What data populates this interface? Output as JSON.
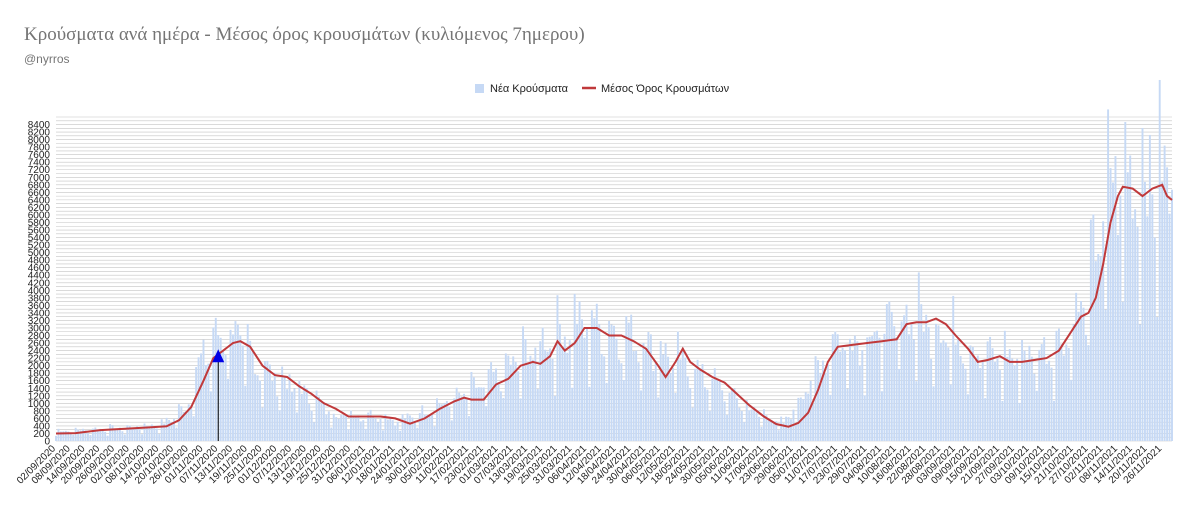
{
  "header": {
    "title": "Κρούσματα ανά ημέρα - Μέσος όρος κρουσμάτων (κυλιόμενος 7ημερου)",
    "subtitle": "@nyrros"
  },
  "chart_data": {
    "type": "bar",
    "title": "Κρούσματα ανά ημέρα - Μέσος όρος κρουσμάτων (κυλιόμενος 7ημερου)",
    "xlabel": "",
    "ylabel": "",
    "ylim": [
      0,
      8600
    ],
    "yticks": [
      0,
      200,
      400,
      600,
      800,
      1000,
      1200,
      1400,
      1600,
      1800,
      2000,
      2200,
      2400,
      2600,
      2800,
      3000,
      3200,
      3400,
      3600,
      3800,
      4000,
      4200,
      4400,
      4600,
      4800,
      5000,
      5200,
      5400,
      5600,
      5800,
      6000,
      6200,
      6400,
      6600,
      6800,
      7000,
      7200,
      7400,
      7600,
      7800,
      8000,
      8200,
      8400
    ],
    "x_start": "02/09/2020",
    "x_end": "30/11/2021",
    "xticks": [
      "02/09/2020",
      "08/09/2020",
      "14/09/2020",
      "20/09/2020",
      "26/09/2020",
      "02/10/2020",
      "08/10/2020",
      "14/10/2020",
      "20/10/2020",
      "26/10/2020",
      "01/11/2020",
      "07/11/2020",
      "13/11/2020",
      "19/11/2020",
      "25/11/2020",
      "01/12/2020",
      "07/12/2020",
      "13/12/2020",
      "19/12/2020",
      "25/12/2020",
      "31/12/2020",
      "06/01/2021",
      "12/01/2021",
      "18/01/2021",
      "24/01/2021",
      "30/01/2021",
      "05/02/2021",
      "11/02/2021",
      "17/02/2021",
      "23/02/2021",
      "01/03/2021",
      "07/03/2021",
      "13/03/2021",
      "19/03/2021",
      "25/03/2021",
      "31/03/2021",
      "06/04/2021",
      "12/04/2021",
      "18/04/2021",
      "24/04/2021",
      "30/04/2021",
      "06/05/2021",
      "12/05/2021",
      "18/05/2021",
      "24/05/2021",
      "30/05/2021",
      "05/06/2021",
      "11/06/2021",
      "17/06/2021",
      "23/06/2021",
      "29/06/2021",
      "05/07/2021",
      "11/07/2021",
      "17/07/2021",
      "23/07/2021",
      "29/07/2021",
      "04/08/2021",
      "10/08/2021",
      "16/08/2021",
      "22/08/2021",
      "28/08/2021",
      "03/09/2021",
      "09/09/2021",
      "15/09/2021",
      "21/09/2021",
      "27/09/2021",
      "03/10/2021",
      "09/10/2021",
      "15/10/2021",
      "21/10/2021",
      "27/10/2021",
      "02/11/2021",
      "08/11/2021",
      "14/11/2021",
      "20/11/2021",
      "26/11/2021"
    ],
    "grid": true,
    "legend_position": "top-center",
    "series": [
      {
        "name": "Νέα Κρούσματα",
        "type": "bar",
        "color": "#c6d9f5",
        "description_points": [
          [
            "02/09/2020",
            250
          ],
          [
            "01/10/2020",
            330
          ],
          [
            "15/10/2020",
            400
          ],
          [
            "25/10/2020",
            850
          ],
          [
            "01/11/2020",
            2200
          ],
          [
            "10/11/2020",
            2800
          ],
          [
            "15/11/2020",
            2600
          ],
          [
            "25/11/2020",
            1800
          ],
          [
            "10/12/2020",
            1300
          ],
          [
            "25/12/2020",
            650
          ],
          [
            "10/01/2021",
            650
          ],
          [
            "20/01/2021",
            500
          ],
          [
            "05/02/2021",
            900
          ],
          [
            "15/02/2021",
            1150
          ],
          [
            "25/02/2021",
            1500
          ],
          [
            "10/03/2021",
            2100
          ],
          [
            "20/03/2021",
            2500
          ],
          [
            "05/04/2021",
            3000
          ],
          [
            "15/04/2021",
            2800
          ],
          [
            "25/04/2021",
            2650
          ],
          [
            "10/05/2021",
            2100
          ],
          [
            "25/05/2021",
            1600
          ],
          [
            "10/06/2021",
            850
          ],
          [
            "25/06/2021",
            420
          ],
          [
            "05/07/2021",
            1400
          ],
          [
            "15/07/2021",
            2500
          ],
          [
            "01/08/2021",
            2600
          ],
          [
            "15/08/2021",
            3200
          ],
          [
            "01/09/2021",
            2700
          ],
          [
            "15/09/2021",
            2100
          ],
          [
            "01/10/2021",
            2150
          ],
          [
            "15/10/2021",
            2400
          ],
          [
            "25/10/2021",
            3400
          ],
          [
            "05/11/2021",
            6500
          ],
          [
            "15/11/2021",
            6600
          ],
          [
            "25/11/2021",
            6600
          ]
        ]
      },
      {
        "name": "Μέσος Όρος Κρουσμάτων",
        "type": "line",
        "color": "#c0393b",
        "points": [
          [
            "02/09/2020",
            200
          ],
          [
            "10/09/2020",
            210
          ],
          [
            "20/09/2020",
            290
          ],
          [
            "01/10/2020",
            330
          ],
          [
            "10/10/2020",
            360
          ],
          [
            "17/10/2020",
            390
          ],
          [
            "22/10/2020",
            550
          ],
          [
            "27/10/2020",
            900
          ],
          [
            "01/11/2020",
            1600
          ],
          [
            "05/11/2020",
            2200
          ],
          [
            "09/11/2020",
            2400
          ],
          [
            "13/11/2020",
            2600
          ],
          [
            "16/11/2020",
            2650
          ],
          [
            "20/11/2020",
            2500
          ],
          [
            "25/11/2020",
            2000
          ],
          [
            "30/11/2020",
            1750
          ],
          [
            "05/12/2020",
            1700
          ],
          [
            "10/12/2020",
            1450
          ],
          [
            "15/12/2020",
            1250
          ],
          [
            "20/12/2020",
            1000
          ],
          [
            "25/12/2020",
            850
          ],
          [
            "30/12/2020",
            650
          ],
          [
            "05/01/2021",
            650
          ],
          [
            "12/01/2021",
            650
          ],
          [
            "18/01/2021",
            600
          ],
          [
            "24/01/2021",
            460
          ],
          [
            "30/01/2021",
            600
          ],
          [
            "05/02/2021",
            850
          ],
          [
            "11/02/2021",
            1050
          ],
          [
            "15/02/2021",
            1150
          ],
          [
            "18/02/2021",
            1100
          ],
          [
            "23/02/2021",
            1100
          ],
          [
            "28/02/2021",
            1500
          ],
          [
            "05/03/2021",
            1650
          ],
          [
            "10/03/2021",
            2000
          ],
          [
            "15/03/2021",
            2100
          ],
          [
            "18/03/2021",
            2050
          ],
          [
            "22/03/2021",
            2250
          ],
          [
            "25/03/2021",
            2650
          ],
          [
            "28/03/2021",
            2400
          ],
          [
            "01/04/2021",
            2600
          ],
          [
            "05/04/2021",
            3000
          ],
          [
            "10/04/2021",
            3000
          ],
          [
            "15/04/2021",
            2800
          ],
          [
            "20/04/2021",
            2800
          ],
          [
            "25/04/2021",
            2650
          ],
          [
            "30/04/2021",
            2450
          ],
          [
            "05/05/2021",
            2000
          ],
          [
            "08/05/2021",
            1700
          ],
          [
            "12/05/2021",
            2100
          ],
          [
            "15/05/2021",
            2450
          ],
          [
            "18/05/2021",
            2100
          ],
          [
            "22/05/2021",
            1900
          ],
          [
            "27/05/2021",
            1700
          ],
          [
            "01/06/2021",
            1550
          ],
          [
            "06/06/2021",
            1250
          ],
          [
            "11/06/2021",
            950
          ],
          [
            "17/06/2021",
            650
          ],
          [
            "22/06/2021",
            450
          ],
          [
            "27/06/2021",
            380
          ],
          [
            "01/07/2021",
            480
          ],
          [
            "05/07/2021",
            750
          ],
          [
            "09/07/2021",
            1350
          ],
          [
            "13/07/2021",
            2100
          ],
          [
            "17/07/2021",
            2500
          ],
          [
            "23/07/2021",
            2550
          ],
          [
            "29/07/2021",
            2600
          ],
          [
            "04/08/2021",
            2650
          ],
          [
            "10/08/2021",
            2700
          ],
          [
            "14/08/2021",
            3100
          ],
          [
            "18/08/2021",
            3150
          ],
          [
            "22/08/2021",
            3150
          ],
          [
            "26/08/2021",
            3250
          ],
          [
            "30/08/2021",
            3100
          ],
          [
            "03/09/2021",
            2800
          ],
          [
            "08/09/2021",
            2450
          ],
          [
            "12/09/2021",
            2100
          ],
          [
            "16/09/2021",
            2150
          ],
          [
            "21/09/2021",
            2250
          ],
          [
            "25/09/2021",
            2100
          ],
          [
            "30/09/2021",
            2100
          ],
          [
            "05/10/2021",
            2150
          ],
          [
            "10/10/2021",
            2200
          ],
          [
            "15/10/2021",
            2400
          ],
          [
            "20/10/2021",
            2900
          ],
          [
            "24/10/2021",
            3300
          ],
          [
            "27/10/2021",
            3400
          ],
          [
            "30/10/2021",
            3800
          ],
          [
            "02/11/2021",
            4700
          ],
          [
            "05/11/2021",
            5800
          ],
          [
            "08/11/2021",
            6500
          ],
          [
            "10/11/2021",
            6750
          ],
          [
            "14/11/2021",
            6700
          ],
          [
            "18/11/2021",
            6500
          ],
          [
            "22/11/2021",
            6700
          ],
          [
            "26/11/2021",
            6800
          ],
          [
            "28/11/2021",
            6500
          ],
          [
            "30/11/2021",
            6400
          ]
        ]
      }
    ],
    "annotations": [
      {
        "type": "marker-triangle-with-line",
        "date": "07/11/2020",
        "value": 2250,
        "color": "#0000e6"
      }
    ]
  }
}
